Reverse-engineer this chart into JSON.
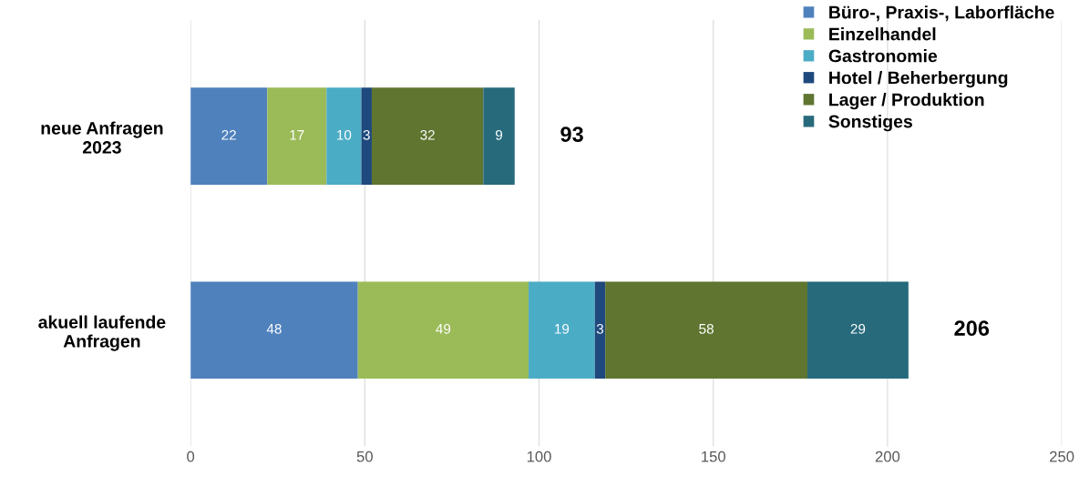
{
  "chart_data": {
    "type": "bar",
    "orientation": "horizontal",
    "stacked": true,
    "categories": [
      "neue Anfragen\n2023",
      "akuell laufende\nAnfragen"
    ],
    "series": [
      {
        "name": "Büro-, Praxis-, Laborfläche",
        "color": "#4f81bd",
        "values": [
          22,
          48
        ]
      },
      {
        "name": "Einzelhandel",
        "color": "#9bbb59",
        "values": [
          17,
          49
        ]
      },
      {
        "name": "Gastronomie",
        "color": "#4bacc6",
        "values": [
          10,
          19
        ]
      },
      {
        "name": "Hotel / Beherbergung",
        "color": "#1f497d",
        "values": [
          3,
          3
        ]
      },
      {
        "name": "Lager / Produktion",
        "color": "#5f7530",
        "values": [
          32,
          58
        ]
      },
      {
        "name": "Sonstiges",
        "color": "#276a7c",
        "values": [
          9,
          29
        ]
      }
    ],
    "data_labels": true,
    "totals": [
      "93",
      "206"
    ],
    "xlim": [
      0,
      250
    ],
    "xticks": [
      0,
      50,
      100,
      150,
      200,
      250
    ],
    "grid": "x",
    "legend": "top right"
  }
}
